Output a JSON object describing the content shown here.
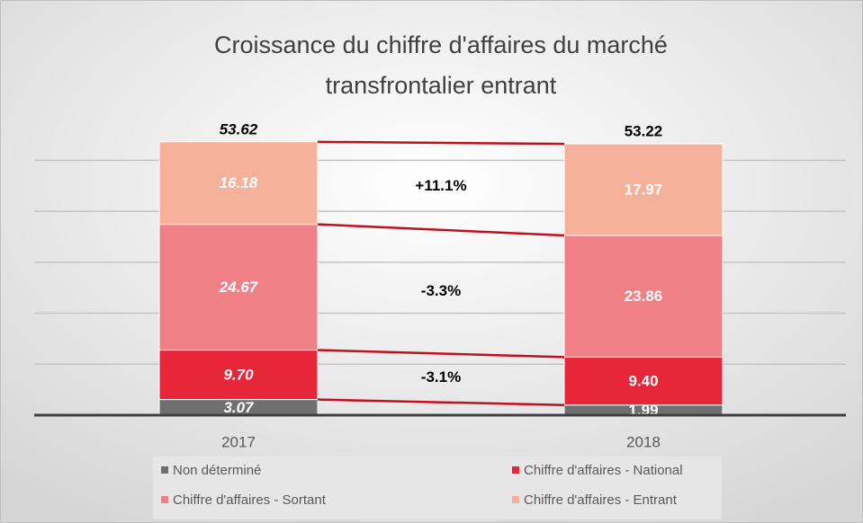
{
  "chart_data": {
    "type": "bar",
    "stacked": true,
    "title": "Croissance du chiffre d'affaires du marché",
    "subtitle": "transfrontalier entrant",
    "categories": [
      "2017",
      "2018"
    ],
    "totals": [
      53.62,
      53.22
    ],
    "series": [
      {
        "name": "Non déterminé",
        "color": "#6f6f6f",
        "values": [
          3.07,
          1.99
        ]
      },
      {
        "name": "Chiffre d'affaires - National",
        "color": "#e8263a",
        "values": [
          9.7,
          9.4
        ],
        "value_labels": [
          "9.70",
          "9.40"
        ],
        "change": "-3.1%"
      },
      {
        "name": "Chiffre d'affaires - Sortant",
        "color": "#f07f86",
        "values": [
          24.67,
          23.86
        ],
        "change": "-3.3%"
      },
      {
        "name": "Chiffre d'affaires - Entrant",
        "color": "#f6b19a",
        "values": [
          16.18,
          17.97
        ],
        "change": "+11.1%"
      }
    ],
    "ylim": [
      0,
      55
    ],
    "yticks": [
      0,
      10,
      20,
      30,
      40,
      50
    ],
    "grid": true
  }
}
